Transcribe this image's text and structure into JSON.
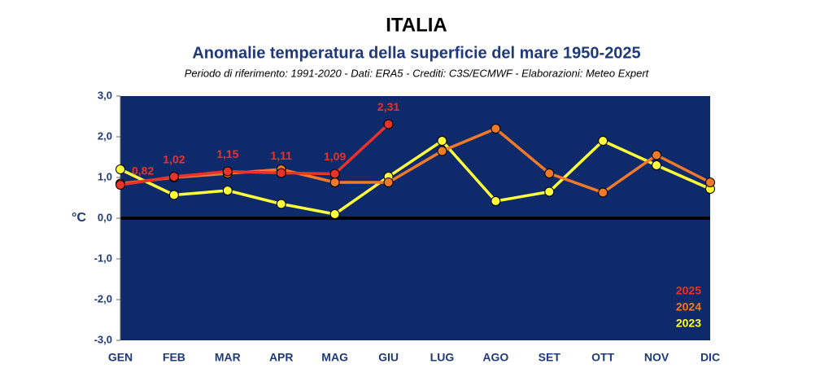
{
  "chart_data": {
    "type": "line",
    "title": "ITALIA",
    "subtitle": "Anomalie temperatura della superficie del mare 1950-2025",
    "note": "Periodo di riferimento: 1991-2020 - Dati: ERA5 - Crediti: C3S/ECMWF - Elaborazioni: Meteo Expert",
    "y_label": "°C",
    "categories": [
      "GEN",
      "FEB",
      "MAR",
      "APR",
      "MAG",
      "GIU",
      "LUG",
      "AGO",
      "SET",
      "OTT",
      "NOV",
      "DIC"
    ],
    "ylim": [
      -3,
      3
    ],
    "yticks": [
      {
        "value": -3,
        "label": "-3,0"
      },
      {
        "value": -2,
        "label": "-2,0"
      },
      {
        "value": -1,
        "label": "-1,0"
      },
      {
        "value": 0,
        "label": "0,0"
      },
      {
        "value": 1,
        "label": "1,0"
      },
      {
        "value": 2,
        "label": "2,0"
      },
      {
        "value": 3,
        "label": "3,0"
      }
    ],
    "background": "#0f2a6b",
    "legend": "bottom-right",
    "series": [
      {
        "name": "2025",
        "color": "#e8322a",
        "values": [
          0.82,
          1.02,
          1.15,
          1.11,
          1.09,
          2.31,
          null,
          null,
          null,
          null,
          null,
          null
        ],
        "value_labels": [
          "0,82",
          "1,02",
          "1,15",
          "1,11",
          "1,09",
          "2,31",
          null,
          null,
          null,
          null,
          null,
          null
        ]
      },
      {
        "name": "2024",
        "color": "#f07a2a",
        "values": [
          0.85,
          1.0,
          1.1,
          1.2,
          0.88,
          0.88,
          1.65,
          2.2,
          1.1,
          0.63,
          1.55,
          0.88
        ]
      },
      {
        "name": "2023",
        "color": "#ffff3a",
        "values": [
          1.2,
          0.57,
          0.68,
          0.35,
          0.1,
          1.02,
          1.9,
          0.42,
          0.65,
          1.9,
          1.3,
          0.72
        ]
      }
    ]
  }
}
